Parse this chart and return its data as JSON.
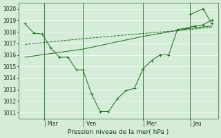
{
  "background_color": "#d4ecd8",
  "grid_color": "#ffffff",
  "line_color": "#1a6b1a",
  "title": "Pression niveau de la mer( hPa )",
  "ylim": [
    1010.5,
    1020.5
  ],
  "xlim": [
    -0.3,
    9.0
  ],
  "day_labels": [
    "| Mar",
    "| Ven",
    "| Mer",
    "| Jeu"
  ],
  "day_positions": [
    0.9,
    2.7,
    5.5,
    7.7
  ],
  "series1_x": [
    0.0,
    0.4,
    0.8,
    1.2,
    1.6,
    2.0,
    2.4,
    2.7,
    3.1,
    3.5,
    3.9,
    4.3,
    4.7,
    5.1,
    5.5,
    5.9,
    6.3,
    6.7,
    7.1,
    7.5,
    7.9,
    8.3,
    8.7
  ],
  "series1_y": [
    1018.7,
    1017.9,
    1017.8,
    1016.6,
    1015.8,
    1015.8,
    1014.7,
    1014.7,
    1012.6,
    1011.1,
    1011.1,
    1012.2,
    1012.9,
    1013.1,
    1014.8,
    1015.5,
    1016.0,
    1016.0,
    1018.2,
    1018.3,
    1018.5,
    1018.6,
    1019.0
  ],
  "series2_x": [
    0.0,
    2.7,
    5.5,
    7.7,
    8.7
  ],
  "series2_y": [
    1016.9,
    1017.4,
    1017.85,
    1018.2,
    1018.4
  ],
  "series3_x": [
    0.0,
    2.7,
    5.5,
    7.7,
    8.7
  ],
  "series3_y": [
    1015.8,
    1016.5,
    1017.6,
    1018.3,
    1018.5
  ],
  "series4_x": [
    7.7,
    8.3,
    8.7
  ],
  "series4_y": [
    1019.5,
    1020.0,
    1018.7
  ],
  "vline_positions": [
    0.9,
    2.7,
    5.5,
    7.7
  ]
}
